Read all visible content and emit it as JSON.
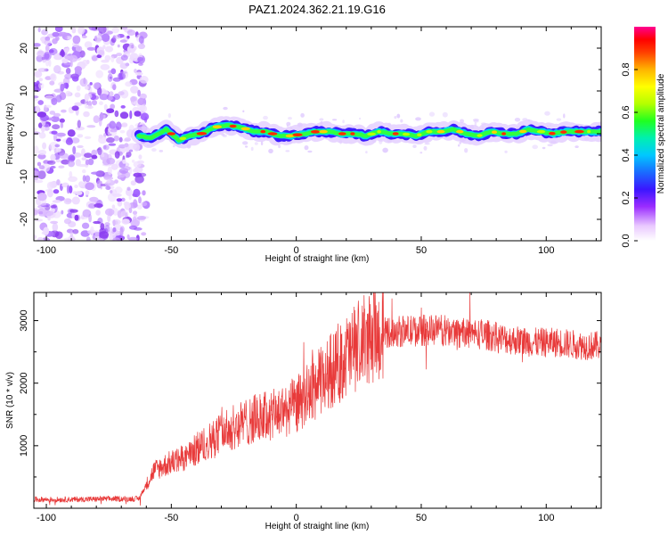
{
  "title": "PAZ1.2024.362.21.19.G16",
  "chart_data": [
    {
      "type": "heatmap",
      "xlabel": "Height of straight line (km)",
      "ylabel": "Frequency (Hz)",
      "xlim": [
        -105,
        122
      ],
      "ylim": [
        -25,
        25
      ],
      "xticks": [
        -100,
        -50,
        0,
        50,
        100
      ],
      "yticks": [
        -20,
        -10,
        0,
        10,
        20
      ],
      "colormap": "rainbow (white-purple-blue-cyan-green-yellow-red)",
      "colorbar": {
        "label": "Normalized spectral amplitude",
        "range": [
          0,
          1
        ],
        "ticks": [
          "0.0",
          "0.2",
          "0.4",
          "0.6",
          "0.8"
        ]
      },
      "noise_region_x": [
        -105,
        -63
      ],
      "signal_ridge": {
        "x": [
          -63,
          -58,
          -52,
          -47,
          -43,
          -38,
          -33,
          -28,
          -22,
          -17,
          -12,
          -7,
          -2,
          3,
          8,
          13,
          18,
          23,
          28,
          33,
          38,
          43,
          48,
          53,
          58,
          63,
          68,
          73,
          78,
          83,
          88,
          93,
          98,
          103,
          108,
          113,
          118,
          122
        ],
        "frequency": [
          -0.5,
          -1,
          1,
          -1.5,
          -0.5,
          0,
          1.5,
          2,
          1.5,
          0.5,
          0.5,
          -0.5,
          -0.5,
          0,
          0.5,
          0.5,
          0,
          0,
          -0.5,
          0.5,
          0,
          0,
          -0.5,
          0.5,
          0.5,
          1,
          0,
          -0.5,
          0.5,
          0,
          0,
          1,
          0.5,
          0,
          0.5,
          0.5,
          0.5,
          0.5
        ]
      }
    },
    {
      "type": "line",
      "xlabel": "Height of straight line (km)",
      "ylabel": "SNR (10 * v/v)",
      "xlim": [
        -105,
        122
      ],
      "ylim": [
        0,
        3450
      ],
      "xticks": [
        -100,
        -50,
        0,
        50,
        100
      ],
      "yticks": [
        1000,
        2000,
        3000
      ],
      "color": "#e83a3a",
      "envelope": {
        "x": [
          -105,
          -90,
          -75,
          -63,
          -57,
          -52,
          -45,
          -38,
          -30,
          -22,
          -15,
          -8,
          0,
          8,
          15,
          22,
          28,
          33,
          38,
          45,
          55,
          65,
          75,
          85,
          95,
          105,
          115,
          122
        ],
        "y": [
          140,
          140,
          150,
          150,
          600,
          700,
          800,
          1000,
          1200,
          1350,
          1450,
          1500,
          1650,
          1950,
          2250,
          2500,
          2700,
          2800,
          2820,
          2830,
          2850,
          2820,
          2780,
          2700,
          2650,
          2650,
          2600,
          2600
        ]
      }
    }
  ]
}
